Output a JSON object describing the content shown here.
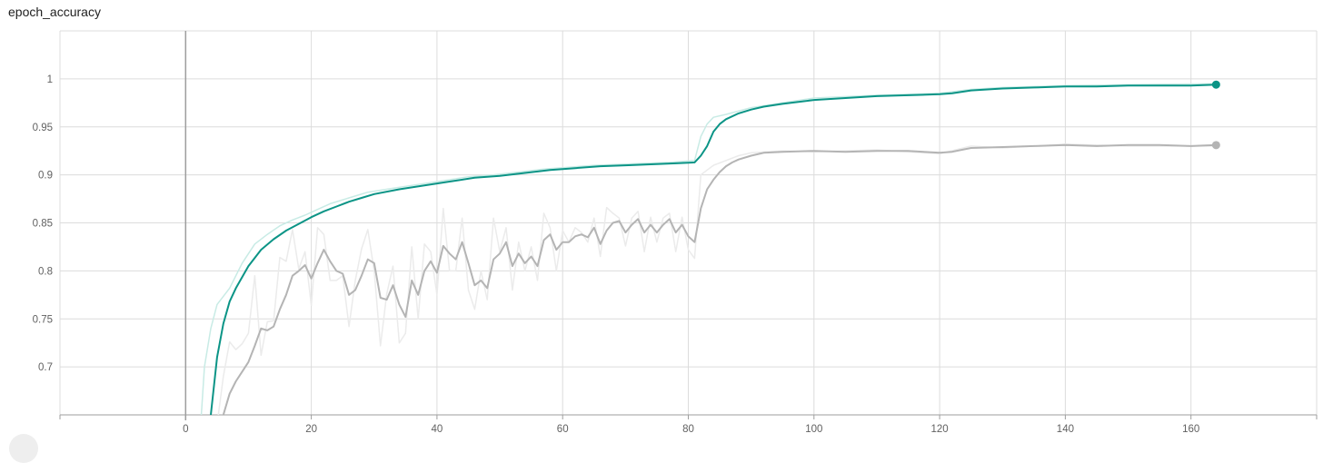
{
  "card": {
    "title": "epoch_accuracy"
  },
  "colors": {
    "train": "#0b9486",
    "train_raw": "#c8ebe5",
    "val": "#b4b4b4",
    "val_raw": "#ebebeb",
    "grid": "#dcdcdc",
    "axis": "#9e9e9e"
  },
  "chart_data": {
    "type": "line",
    "title": "epoch_accuracy",
    "xlabel": "",
    "ylabel": "",
    "xlim": [
      -20,
      180
    ],
    "ylim": [
      0.65,
      1.05
    ],
    "xticks": [
      0,
      20,
      40,
      60,
      80,
      100,
      120,
      140,
      160
    ],
    "yticks": [
      0.7,
      0.75,
      0.8,
      0.85,
      0.9,
      0.95,
      1
    ],
    "grid": true,
    "series": [
      {
        "role": "train-smoothed",
        "color": "#0b9486",
        "points": [
          [
            3,
            0.6
          ],
          [
            4,
            0.65
          ],
          [
            5,
            0.71
          ],
          [
            6,
            0.745
          ],
          [
            7,
            0.768
          ],
          [
            8,
            0.782
          ],
          [
            10,
            0.805
          ],
          [
            12,
            0.822
          ],
          [
            14,
            0.833
          ],
          [
            16,
            0.842
          ],
          [
            18,
            0.849
          ],
          [
            20,
            0.856
          ],
          [
            22,
            0.862
          ],
          [
            24,
            0.867
          ],
          [
            26,
            0.872
          ],
          [
            28,
            0.876
          ],
          [
            30,
            0.88
          ],
          [
            34,
            0.885
          ],
          [
            38,
            0.889
          ],
          [
            42,
            0.893
          ],
          [
            46,
            0.897
          ],
          [
            50,
            0.899
          ],
          [
            54,
            0.902
          ],
          [
            58,
            0.905
          ],
          [
            62,
            0.907
          ],
          [
            66,
            0.909
          ],
          [
            70,
            0.91
          ],
          [
            74,
            0.911
          ],
          [
            78,
            0.912
          ],
          [
            81,
            0.913
          ],
          [
            82,
            0.92
          ],
          [
            83,
            0.93
          ],
          [
            84,
            0.945
          ],
          [
            85,
            0.953
          ],
          [
            86,
            0.958
          ],
          [
            88,
            0.964
          ],
          [
            90,
            0.968
          ],
          [
            92,
            0.971
          ],
          [
            95,
            0.974
          ],
          [
            100,
            0.978
          ],
          [
            105,
            0.98
          ],
          [
            110,
            0.982
          ],
          [
            115,
            0.983
          ],
          [
            120,
            0.984
          ],
          [
            122,
            0.985
          ],
          [
            125,
            0.988
          ],
          [
            130,
            0.99
          ],
          [
            135,
            0.991
          ],
          [
            140,
            0.992
          ],
          [
            145,
            0.992
          ],
          [
            150,
            0.993
          ],
          [
            155,
            0.993
          ],
          [
            160,
            0.993
          ],
          [
            164,
            0.994
          ]
        ]
      },
      {
        "role": "train-raw",
        "color": "#c8ebe5",
        "points": [
          [
            2,
            0.6
          ],
          [
            3,
            0.7
          ],
          [
            4,
            0.74
          ],
          [
            5,
            0.765
          ],
          [
            7,
            0.782
          ],
          [
            9,
            0.808
          ],
          [
            11,
            0.828
          ],
          [
            13,
            0.838
          ],
          [
            15,
            0.847
          ],
          [
            17,
            0.853
          ],
          [
            19,
            0.858
          ],
          [
            21,
            0.864
          ],
          [
            23,
            0.87
          ],
          [
            25,
            0.874
          ],
          [
            27,
            0.878
          ],
          [
            29,
            0.882
          ],
          [
            33,
            0.886
          ],
          [
            37,
            0.89
          ],
          [
            41,
            0.894
          ],
          [
            45,
            0.898
          ],
          [
            49,
            0.9
          ],
          [
            53,
            0.903
          ],
          [
            57,
            0.906
          ],
          [
            61,
            0.908
          ],
          [
            65,
            0.91
          ],
          [
            69,
            0.911
          ],
          [
            73,
            0.912
          ],
          [
            77,
            0.913
          ],
          [
            81,
            0.915
          ],
          [
            82,
            0.94
          ],
          [
            83,
            0.953
          ],
          [
            84,
            0.96
          ],
          [
            86,
            0.963
          ],
          [
            90,
            0.97
          ],
          [
            95,
            0.975
          ],
          [
            100,
            0.98
          ],
          [
            110,
            0.983
          ],
          [
            120,
            0.985
          ],
          [
            125,
            0.989
          ],
          [
            130,
            0.991
          ],
          [
            140,
            0.993
          ],
          [
            150,
            0.994
          ],
          [
            164,
            0.995
          ]
        ]
      },
      {
        "role": "val-smoothed",
        "color": "#b4b4b4",
        "points": [
          [
            5,
            0.62
          ],
          [
            6,
            0.65
          ],
          [
            7,
            0.672
          ],
          [
            8,
            0.685
          ],
          [
            9,
            0.695
          ],
          [
            10,
            0.705
          ],
          [
            11,
            0.722
          ],
          [
            12,
            0.74
          ],
          [
            13,
            0.738
          ],
          [
            14,
            0.742
          ],
          [
            15,
            0.76
          ],
          [
            16,
            0.775
          ],
          [
            17,
            0.795
          ],
          [
            18,
            0.8
          ],
          [
            19,
            0.806
          ],
          [
            20,
            0.792
          ],
          [
            21,
            0.808
          ],
          [
            22,
            0.822
          ],
          [
            23,
            0.81
          ],
          [
            24,
            0.8
          ],
          [
            25,
            0.797
          ],
          [
            26,
            0.775
          ],
          [
            27,
            0.78
          ],
          [
            28,
            0.795
          ],
          [
            29,
            0.812
          ],
          [
            30,
            0.808
          ],
          [
            31,
            0.772
          ],
          [
            32,
            0.77
          ],
          [
            33,
            0.785
          ],
          [
            34,
            0.765
          ],
          [
            35,
            0.752
          ],
          [
            36,
            0.79
          ],
          [
            37,
            0.775
          ],
          [
            38,
            0.8
          ],
          [
            39,
            0.81
          ],
          [
            40,
            0.798
          ],
          [
            41,
            0.826
          ],
          [
            42,
            0.818
          ],
          [
            43,
            0.812
          ],
          [
            44,
            0.83
          ],
          [
            45,
            0.808
          ],
          [
            46,
            0.785
          ],
          [
            47,
            0.79
          ],
          [
            48,
            0.782
          ],
          [
            49,
            0.812
          ],
          [
            50,
            0.818
          ],
          [
            51,
            0.83
          ],
          [
            52,
            0.805
          ],
          [
            53,
            0.818
          ],
          [
            54,
            0.808
          ],
          [
            55,
            0.815
          ],
          [
            56,
            0.805
          ],
          [
            57,
            0.832
          ],
          [
            58,
            0.838
          ],
          [
            59,
            0.822
          ],
          [
            60,
            0.83
          ],
          [
            61,
            0.83
          ],
          [
            62,
            0.836
          ],
          [
            63,
            0.838
          ],
          [
            64,
            0.835
          ],
          [
            65,
            0.845
          ],
          [
            66,
            0.828
          ],
          [
            67,
            0.842
          ],
          [
            68,
            0.85
          ],
          [
            69,
            0.852
          ],
          [
            70,
            0.84
          ],
          [
            71,
            0.848
          ],
          [
            72,
            0.854
          ],
          [
            73,
            0.84
          ],
          [
            74,
            0.848
          ],
          [
            75,
            0.84
          ],
          [
            76,
            0.848
          ],
          [
            77,
            0.854
          ],
          [
            78,
            0.84
          ],
          [
            79,
            0.848
          ],
          [
            80,
            0.836
          ],
          [
            81,
            0.83
          ],
          [
            82,
            0.865
          ],
          [
            83,
            0.885
          ],
          [
            84,
            0.895
          ],
          [
            85,
            0.903
          ],
          [
            86,
            0.909
          ],
          [
            87,
            0.913
          ],
          [
            88,
            0.916
          ],
          [
            90,
            0.92
          ],
          [
            92,
            0.923
          ],
          [
            95,
            0.924
          ],
          [
            100,
            0.925
          ],
          [
            105,
            0.924
          ],
          [
            110,
            0.925
          ],
          [
            115,
            0.925
          ],
          [
            120,
            0.923
          ],
          [
            122,
            0.924
          ],
          [
            125,
            0.928
          ],
          [
            130,
            0.929
          ],
          [
            135,
            0.93
          ],
          [
            140,
            0.931
          ],
          [
            145,
            0.93
          ],
          [
            150,
            0.931
          ],
          [
            155,
            0.931
          ],
          [
            160,
            0.93
          ],
          [
            164,
            0.931
          ]
        ]
      },
      {
        "role": "val-raw",
        "color": "#ebebeb",
        "points": [
          [
            5,
            0.64
          ],
          [
            6,
            0.69
          ],
          [
            7,
            0.726
          ],
          [
            8,
            0.718
          ],
          [
            9,
            0.724
          ],
          [
            10,
            0.735
          ],
          [
            11,
            0.795
          ],
          [
            12,
            0.712
          ],
          [
            13,
            0.747
          ],
          [
            14,
            0.748
          ],
          [
            15,
            0.814
          ],
          [
            16,
            0.81
          ],
          [
            17,
            0.843
          ],
          [
            18,
            0.802
          ],
          [
            19,
            0.82
          ],
          [
            20,
            0.764
          ],
          [
            21,
            0.845
          ],
          [
            22,
            0.838
          ],
          [
            23,
            0.79
          ],
          [
            24,
            0.79
          ],
          [
            25,
            0.795
          ],
          [
            26,
            0.742
          ],
          [
            27,
            0.79
          ],
          [
            28,
            0.823
          ],
          [
            29,
            0.843
          ],
          [
            30,
            0.8
          ],
          [
            31,
            0.722
          ],
          [
            32,
            0.776
          ],
          [
            33,
            0.805
          ],
          [
            34,
            0.725
          ],
          [
            35,
            0.735
          ],
          [
            36,
            0.825
          ],
          [
            37,
            0.75
          ],
          [
            38,
            0.828
          ],
          [
            39,
            0.82
          ],
          [
            40,
            0.775
          ],
          [
            41,
            0.865
          ],
          [
            42,
            0.8
          ],
          [
            43,
            0.8
          ],
          [
            44,
            0.855
          ],
          [
            45,
            0.78
          ],
          [
            46,
            0.76
          ],
          [
            47,
            0.8
          ],
          [
            48,
            0.77
          ],
          [
            49,
            0.855
          ],
          [
            50,
            0.82
          ],
          [
            51,
            0.845
          ],
          [
            52,
            0.78
          ],
          [
            53,
            0.83
          ],
          [
            54,
            0.8
          ],
          [
            55,
            0.825
          ],
          [
            56,
            0.79
          ],
          [
            57,
            0.86
          ],
          [
            58,
            0.845
          ],
          [
            59,
            0.8
          ],
          [
            60,
            0.842
          ],
          [
            61,
            0.83
          ],
          [
            62,
            0.845
          ],
          [
            63,
            0.84
          ],
          [
            64,
            0.83
          ],
          [
            65,
            0.855
          ],
          [
            66,
            0.815
          ],
          [
            67,
            0.866
          ],
          [
            68,
            0.86
          ],
          [
            69,
            0.855
          ],
          [
            70,
            0.826
          ],
          [
            71,
            0.855
          ],
          [
            72,
            0.862
          ],
          [
            73,
            0.82
          ],
          [
            74,
            0.856
          ],
          [
            75,
            0.83
          ],
          [
            76,
            0.855
          ],
          [
            77,
            0.86
          ],
          [
            78,
            0.82
          ],
          [
            79,
            0.856
          ],
          [
            80,
            0.822
          ],
          [
            81,
            0.813
          ],
          [
            82,
            0.9
          ],
          [
            83,
            0.905
          ],
          [
            84,
            0.91
          ],
          [
            86,
            0.915
          ],
          [
            88,
            0.92
          ],
          [
            90,
            0.923
          ],
          [
            95,
            0.925
          ],
          [
            100,
            0.924
          ],
          [
            110,
            0.926
          ],
          [
            120,
            0.922
          ],
          [
            125,
            0.93
          ],
          [
            130,
            0.928
          ],
          [
            140,
            0.932
          ],
          [
            150,
            0.93
          ],
          [
            164,
            0.93
          ]
        ]
      }
    ],
    "endpoints": [
      {
        "series": "train-smoothed",
        "x": 164,
        "y": 0.994,
        "color": "#0b9486"
      },
      {
        "series": "val-smoothed",
        "x": 164,
        "y": 0.931,
        "color": "#b4b4b4"
      }
    ]
  }
}
